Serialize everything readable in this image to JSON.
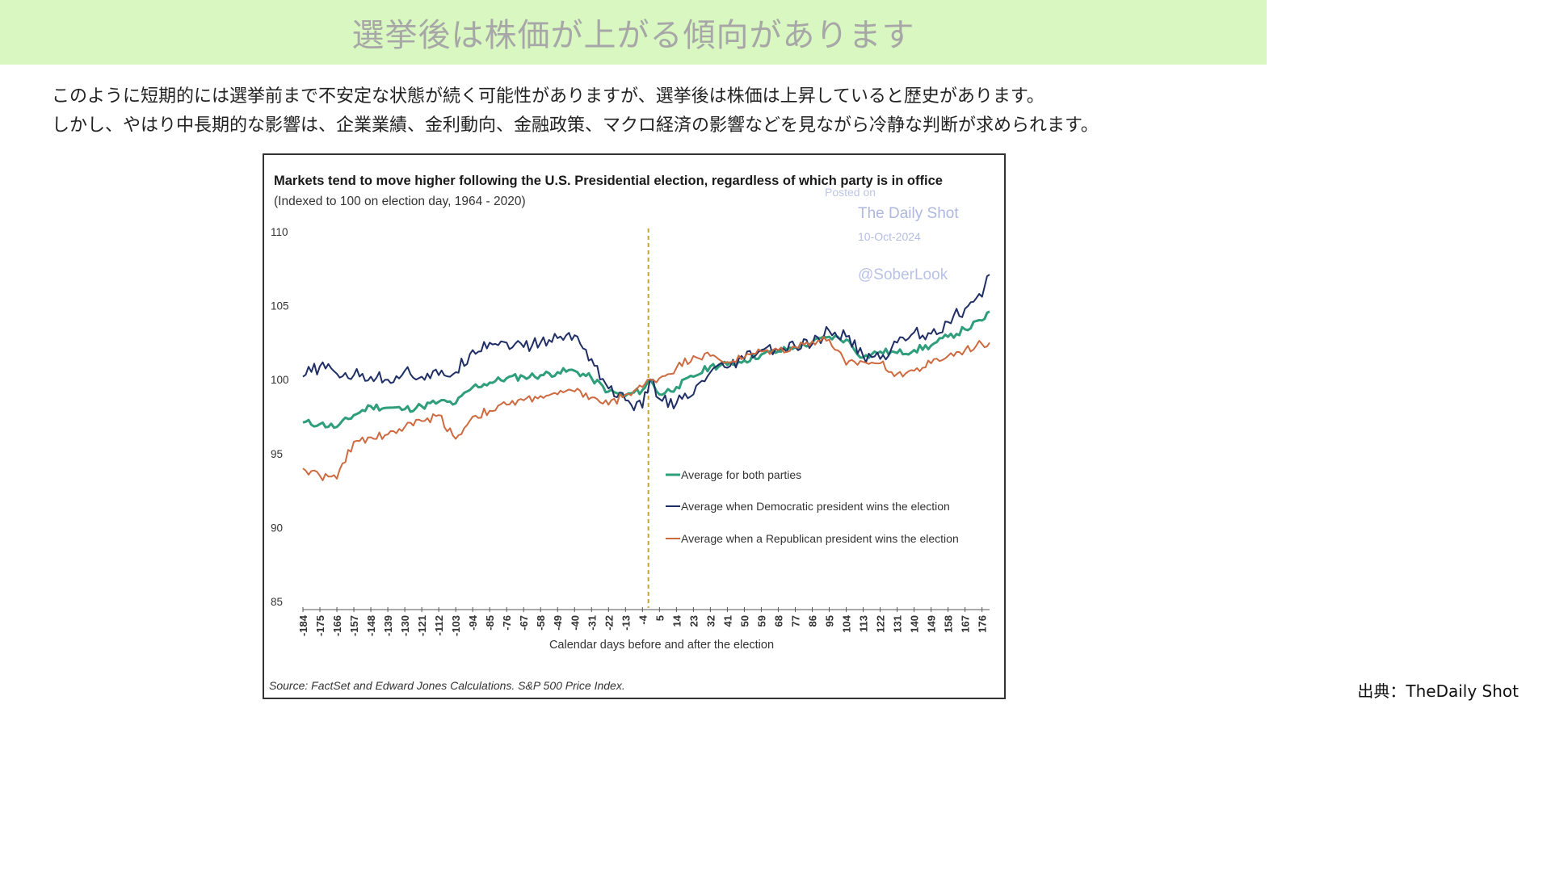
{
  "banner": {
    "title": "選挙後は株価が上がる傾向があります"
  },
  "intro": {
    "line1": "このように短期的には選挙前まで不安定な状態が続く可能性がありますが、選挙後は株価は上昇していると歴史があります。",
    "line2": "しかし、やはり中長期的な影響は、企業業績、金利動向、金融政策、マクロ経済の影響などを見ながら冷静な判断が求められます。"
  },
  "watermark": {
    "posted": "Posted on",
    "brand": "The Daily Shot",
    "date": "10-Oct-2024",
    "handle": "@SoberLook"
  },
  "credit": "出典：TheDaily Shot",
  "colors": {
    "both": "#2e9e7b",
    "dem": "#1f2e64",
    "rep": "#cd6a3f",
    "election_line": "#c9a23a",
    "banner_bg": "#d9f7c1"
  },
  "chart_data": {
    "type": "line",
    "title": "Markets tend to move higher following the U.S. Presidential election, regardless of which party is in office",
    "subtitle": "(Indexed to 100 on election day, 1964 - 2020)",
    "xlabel": "Calendar days before and after the election",
    "ylabel": "",
    "source": "Source: FactSet and Edward Jones Calculations. S&P 500 Price Index.",
    "ylim": [
      85,
      110
    ],
    "yticks": [
      85,
      90,
      95,
      100,
      105,
      110
    ],
    "xlim": [
      -184,
      180
    ],
    "xticks": [
      -184,
      -175,
      -166,
      -157,
      -148,
      -139,
      -130,
      -121,
      -112,
      -103,
      -94,
      -85,
      -76,
      -67,
      -58,
      -49,
      -40,
      -31,
      -22,
      -13,
      -4,
      5,
      14,
      23,
      32,
      41,
      50,
      59,
      68,
      77,
      86,
      95,
      104,
      113,
      122,
      131,
      140,
      149,
      158,
      167,
      176
    ],
    "election_day": 0,
    "legend_position": "bottom-right",
    "series": [
      {
        "name": "Average for both parties",
        "color_key": "both",
        "points": [
          [
            -184,
            97.1
          ],
          [
            -175,
            97.0
          ],
          [
            -166,
            96.8
          ],
          [
            -157,
            97.6
          ],
          [
            -148,
            98.2
          ],
          [
            -139,
            98.1
          ],
          [
            -130,
            98.0
          ],
          [
            -121,
            98.2
          ],
          [
            -112,
            98.5
          ],
          [
            -103,
            98.4
          ],
          [
            -94,
            99.5
          ],
          [
            -85,
            99.8
          ],
          [
            -76,
            100.1
          ],
          [
            -67,
            100.2
          ],
          [
            -58,
            100.3
          ],
          [
            -49,
            100.5
          ],
          [
            -40,
            100.6
          ],
          [
            -31,
            100.1
          ],
          [
            -22,
            99.2
          ],
          [
            -13,
            98.9
          ],
          [
            -4,
            99.3
          ],
          [
            0,
            100.0
          ],
          [
            5,
            99.0
          ],
          [
            14,
            99.5
          ],
          [
            23,
            100.2
          ],
          [
            32,
            100.9
          ],
          [
            41,
            101.0
          ],
          [
            50,
            101.3
          ],
          [
            59,
            101.7
          ],
          [
            68,
            101.9
          ],
          [
            77,
            102.2
          ],
          [
            86,
            102.5
          ],
          [
            95,
            102.9
          ],
          [
            104,
            102.7
          ],
          [
            113,
            101.5
          ],
          [
            122,
            101.9
          ],
          [
            131,
            101.8
          ],
          [
            140,
            102.0
          ],
          [
            149,
            102.3
          ],
          [
            158,
            102.9
          ],
          [
            167,
            103.4
          ],
          [
            176,
            104.0
          ],
          [
            180,
            104.6
          ]
        ]
      },
      {
        "name": "Average when Democratic president wins the election",
        "color_key": "dem",
        "points": [
          [
            -184,
            100.2
          ],
          [
            -175,
            100.9
          ],
          [
            -166,
            100.4
          ],
          [
            -157,
            100.3
          ],
          [
            -148,
            100.2
          ],
          [
            -139,
            100.0
          ],
          [
            -130,
            100.6
          ],
          [
            -121,
            100.2
          ],
          [
            -112,
            100.3
          ],
          [
            -103,
            100.5
          ],
          [
            -94,
            102.0
          ],
          [
            -85,
            102.5
          ],
          [
            -76,
            102.5
          ],
          [
            -67,
            102.2
          ],
          [
            -58,
            102.5
          ],
          [
            -49,
            102.8
          ],
          [
            -40,
            103.0
          ],
          [
            -31,
            101.4
          ],
          [
            -22,
            99.4
          ],
          [
            -13,
            98.6
          ],
          [
            -4,
            98.1
          ],
          [
            0,
            100.0
          ],
          [
            5,
            98.7
          ],
          [
            14,
            98.4
          ],
          [
            23,
            99.0
          ],
          [
            32,
            100.5
          ],
          [
            41,
            100.8
          ],
          [
            50,
            101.4
          ],
          [
            59,
            102.0
          ],
          [
            68,
            102.0
          ],
          [
            77,
            102.2
          ],
          [
            86,
            102.4
          ],
          [
            95,
            103.3
          ],
          [
            104,
            102.9
          ],
          [
            113,
            101.6
          ],
          [
            122,
            101.4
          ],
          [
            131,
            102.5
          ],
          [
            140,
            103.2
          ],
          [
            149,
            103.1
          ],
          [
            158,
            103.9
          ],
          [
            167,
            104.8
          ],
          [
            176,
            105.6
          ],
          [
            180,
            107.1
          ]
        ]
      },
      {
        "name": "Average when a Republican president wins the election",
        "color_key": "rep",
        "points": [
          [
            -184,
            94.0
          ],
          [
            -175,
            93.5
          ],
          [
            -166,
            93.3
          ],
          [
            -157,
            95.8
          ],
          [
            -148,
            96.1
          ],
          [
            -139,
            96.3
          ],
          [
            -130,
            96.8
          ],
          [
            -121,
            97.2
          ],
          [
            -112,
            97.6
          ],
          [
            -103,
            96.0
          ],
          [
            -94,
            97.5
          ],
          [
            -85,
            97.9
          ],
          [
            -76,
            98.3
          ],
          [
            -67,
            98.6
          ],
          [
            -58,
            98.9
          ],
          [
            -49,
            99.0
          ],
          [
            -40,
            99.2
          ],
          [
            -31,
            98.8
          ],
          [
            -22,
            98.3
          ],
          [
            -13,
            99.0
          ],
          [
            -4,
            99.5
          ],
          [
            0,
            100.0
          ],
          [
            5,
            100.1
          ],
          [
            14,
            100.8
          ],
          [
            23,
            101.6
          ],
          [
            32,
            101.6
          ],
          [
            41,
            101.2
          ],
          [
            50,
            101.5
          ],
          [
            59,
            101.9
          ],
          [
            68,
            102.0
          ],
          [
            77,
            102.2
          ],
          [
            86,
            102.6
          ],
          [
            95,
            102.7
          ],
          [
            104,
            101.0
          ],
          [
            113,
            101.2
          ],
          [
            122,
            101.1
          ],
          [
            131,
            100.4
          ],
          [
            140,
            100.6
          ],
          [
            149,
            101.1
          ],
          [
            158,
            101.6
          ],
          [
            167,
            102.0
          ],
          [
            176,
            102.4
          ],
          [
            180,
            102.5
          ]
        ]
      }
    ]
  }
}
